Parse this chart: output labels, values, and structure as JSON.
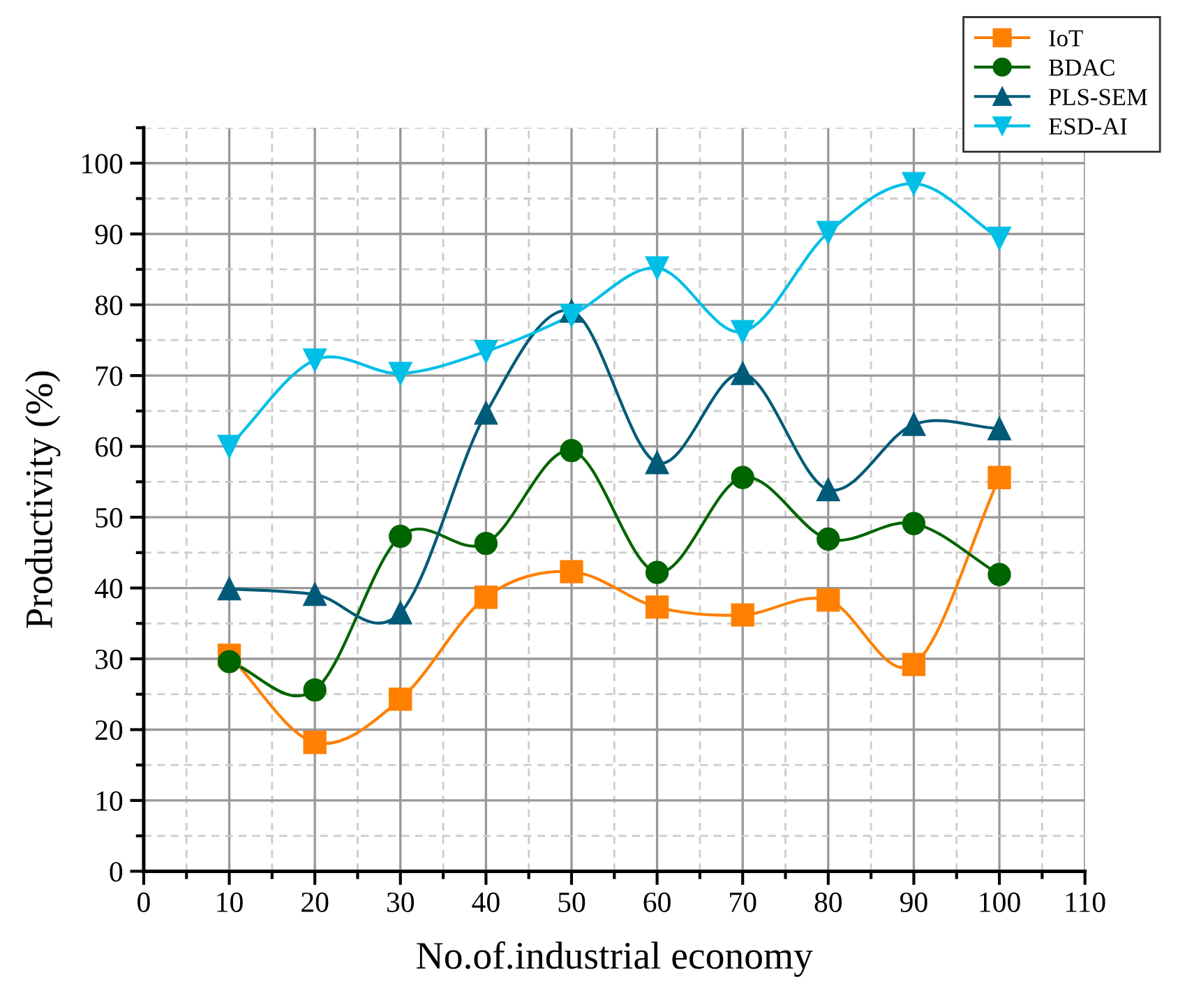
{
  "chart_data": {
    "type": "line",
    "xlabel": "No.of.industrial economy",
    "ylabel": "Productivity (%)",
    "x": [
      10,
      20,
      30,
      40,
      50,
      60,
      70,
      80,
      90,
      100
    ],
    "series": [
      {
        "name": "IoT",
        "color": "#ff8000",
        "marker": "square",
        "values": [
          30.5,
          18.2,
          24.3,
          38.7,
          42.3,
          37.3,
          36.2,
          38.3,
          29.2,
          55.6
        ]
      },
      {
        "name": "BDAC",
        "color": "#006400",
        "marker": "circle",
        "values": [
          29.6,
          25.6,
          47.3,
          46.3,
          59.4,
          42.2,
          55.6,
          46.9,
          49.1,
          41.9
        ]
      },
      {
        "name": "PLS-SEM",
        "color": "#005a78",
        "marker": "triangle",
        "values": [
          39.9,
          39.1,
          36.5,
          64.7,
          79.1,
          57.7,
          70.3,
          53.9,
          63.1,
          62.5
        ]
      },
      {
        "name": "ESD-AI",
        "color": "#00bfe6",
        "marker": "triangle_down",
        "values": [
          60.0,
          72.2,
          70.3,
          73.4,
          78.5,
          85.2,
          76.2,
          90.2,
          97.1,
          89.4
        ]
      }
    ],
    "xlim": [
      0,
      110
    ],
    "xticks": [
      0,
      10,
      20,
      30,
      40,
      50,
      60,
      70,
      80,
      90,
      100,
      110
    ],
    "ylim": [
      0,
      105
    ],
    "yticks": [
      0,
      10,
      20,
      30,
      40,
      50,
      60,
      70,
      80,
      90,
      100
    ],
    "grid": true,
    "legend": "top right",
    "line_style": "solid"
  }
}
